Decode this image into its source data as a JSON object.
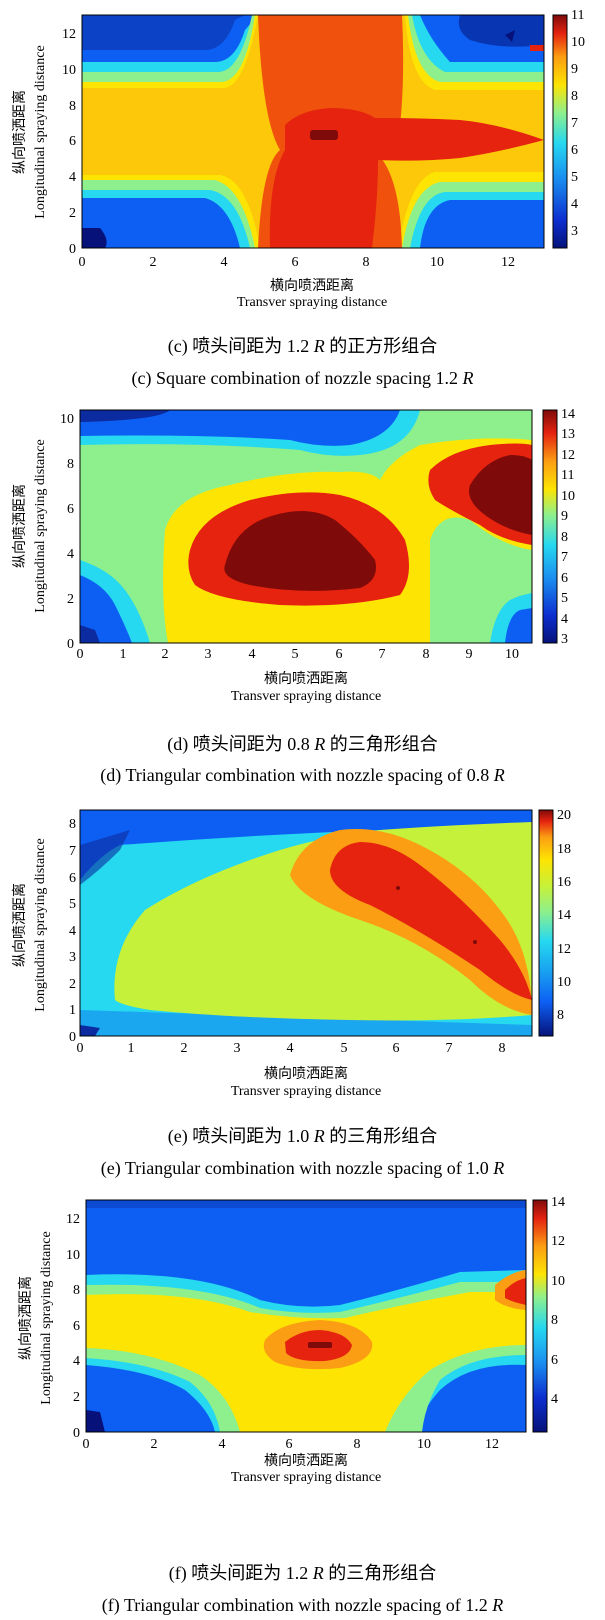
{
  "colors": {
    "darkred": "#7e0a0a",
    "red": "#e5230f",
    "orangered": "#f0520d",
    "orange": "#fb9e13",
    "yellow": "#fde403",
    "lime": "#c5f13a",
    "mint": "#8ef08c",
    "cyan": "#26d8f0",
    "sky": "#1aa7f0",
    "blue": "#0d5ff3",
    "navy": "#0c2ba0",
    "darknavy": "#06127a"
  },
  "charts": [
    {
      "id": "c",
      "chart_data": {
        "type": "heatmap",
        "xlabel_cn": "横向喷洒距离",
        "xlabel": "Transver spraying distance",
        "ylabel_cn": "纵向喷洒距离",
        "ylabel": "Longitudinal spraying distance",
        "xlim": [
          0,
          13
        ],
        "ylim": [
          0,
          13
        ],
        "xticks": [
          "0",
          "2",
          "4",
          "6",
          "8",
          "10",
          "12"
        ],
        "yticks": [
          "0",
          "2",
          "4",
          "6",
          "8",
          "10",
          "12"
        ],
        "colorbar": {
          "range": [
            2.4,
            11.2
          ],
          "ticks": [
            "3",
            "4",
            "5",
            "6",
            "7",
            "8",
            "9",
            "10",
            "11"
          ]
        }
      },
      "caption_cn": {
        "before": "(c)  喷头间距为 1.2 ",
        "r": "R",
        "after": " 的正方形组合"
      },
      "caption_en": {
        "before": "(c) Square combination of nozzle spacing 1.2 ",
        "r": "R",
        "after": ""
      }
    },
    {
      "id": "d",
      "chart_data": {
        "type": "heatmap",
        "xlabel_cn": "横向喷洒距离",
        "xlabel": "Transver spraying distance",
        "ylabel_cn": "纵向喷洒距离",
        "ylabel": "Longitudinal spraying distance",
        "xlim": [
          0,
          10.4
        ],
        "ylim": [
          0,
          10.4
        ],
        "xticks": [
          "0",
          "1",
          "2",
          "3",
          "4",
          "5",
          "6",
          "7",
          "8",
          "9",
          "10"
        ],
        "yticks": [
          "0",
          "2",
          "4",
          "6",
          "8",
          "10"
        ],
        "colorbar": {
          "range": [
            2.8,
            14.2
          ],
          "ticks": [
            "3",
            "4",
            "5",
            "6",
            "7",
            "8",
            "9",
            "10",
            "11",
            "12",
            "13",
            "14"
          ]
        }
      },
      "caption_cn": {
        "before": "(d)  喷头间距为 0.8 ",
        "r": "R",
        "after": " 的三角形组合"
      },
      "caption_en": {
        "before": "(d) Triangular combination with nozzle spacing of 0.8 ",
        "r": "R",
        "after": ""
      }
    },
    {
      "id": "e",
      "chart_data": {
        "type": "heatmap",
        "xlabel_cn": "横向喷洒距离",
        "xlabel": "Transver spraying distance",
        "ylabel_cn": "纵向喷洒距离",
        "ylabel": "Longitudinal spraying distance",
        "xlim": [
          0,
          8.5
        ],
        "ylim": [
          0,
          8.5
        ],
        "xticks": [
          "0",
          "1",
          "2",
          "3",
          "4",
          "5",
          "6",
          "7",
          "8"
        ],
        "yticks": [
          "0",
          "1",
          "2",
          "3",
          "4",
          "5",
          "6",
          "7",
          "8"
        ],
        "colorbar": {
          "range": [
            6.5,
            20.3
          ],
          "ticks": [
            "8",
            "10",
            "12",
            "14",
            "16",
            "18",
            "20"
          ]
        }
      },
      "caption_cn": {
        "before": "(e)  喷头间距为 1.0 ",
        "r": "R",
        "after": " 的三角形组合"
      },
      "caption_en": {
        "before": "(e) Triangular combination with nozzle spacing of 1.0 ",
        "r": "R",
        "after": ""
      }
    },
    {
      "id": "f",
      "chart_data": {
        "type": "heatmap",
        "xlabel_cn": "横向喷洒距离",
        "xlabel": "Transver spraying distance",
        "ylabel_cn": "纵向喷洒距离",
        "ylabel": "Longitudinal spraying distance",
        "xlim": [
          0,
          13
        ],
        "ylim": [
          0,
          13
        ],
        "xticks": [
          "0",
          "2",
          "4",
          "6",
          "8",
          "10",
          "12"
        ],
        "yticks": [
          "0",
          "2",
          "4",
          "6",
          "8",
          "10",
          "12"
        ],
        "colorbar": {
          "range": [
            2.5,
            14.3
          ],
          "ticks": [
            "4",
            "6",
            "8",
            "10",
            "12",
            "14"
          ]
        }
      },
      "caption_cn": {
        "before": "(f)  喷头间距为 1.2 ",
        "r": "R",
        "after": " 的三角形组合"
      },
      "caption_en": {
        "before": "(f) Triangular combination with nozzle spacing of 1.2 ",
        "r": "R",
        "after": ""
      }
    }
  ]
}
